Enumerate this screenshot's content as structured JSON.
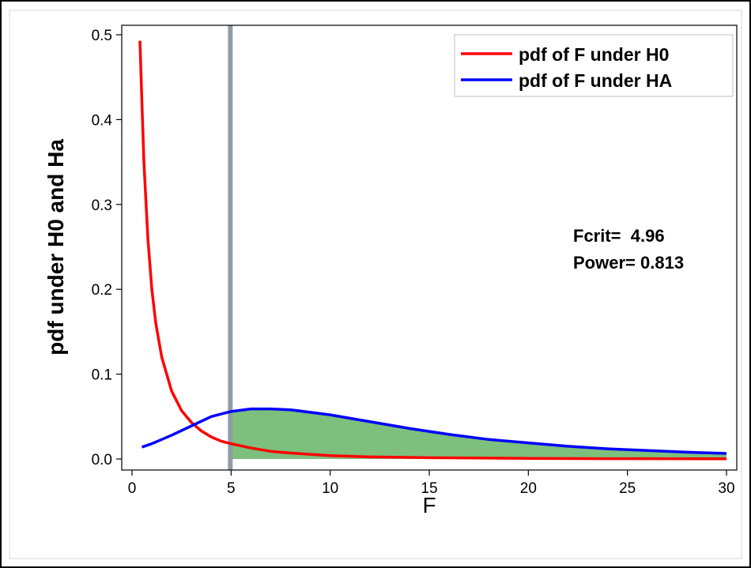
{
  "chart_data": {
    "type": "line",
    "title": "",
    "xlabel": "F",
    "ylabel": "pdf under H0 and Ha",
    "xlim": [
      0,
      30
    ],
    "ylim": [
      0,
      0.5
    ],
    "xticks": [
      0,
      5,
      10,
      15,
      20,
      25,
      30
    ],
    "yticks": [
      0.0,
      0.1,
      0.2,
      0.3,
      0.4,
      0.5
    ],
    "xtick_labels": [
      "0",
      "5",
      "10",
      "15",
      "20",
      "25",
      "30"
    ],
    "ytick_labels": [
      "0.0",
      "0.1",
      "0.2",
      "0.3",
      "0.4",
      "0.5"
    ],
    "grid": false,
    "legend_position": "top-right",
    "series": [
      {
        "name": "pdf of F under H0",
        "color": "#ff0000",
        "x": [
          0.4,
          0.5,
          0.6,
          0.8,
          1.0,
          1.2,
          1.5,
          2.0,
          2.5,
          3.0,
          3.5,
          4.0,
          4.5,
          5.0,
          6.0,
          7.0,
          8.0,
          10.0,
          12.0,
          15.0,
          20.0,
          25.0,
          30.0
        ],
        "values": [
          0.493,
          0.42,
          0.35,
          0.26,
          0.2,
          0.16,
          0.12,
          0.08,
          0.057,
          0.043,
          0.033,
          0.026,
          0.021,
          0.018,
          0.013,
          0.009,
          0.007,
          0.004,
          0.0025,
          0.0015,
          0.0007,
          0.0003,
          0.0002
        ]
      },
      {
        "name": "pdf of F under HA",
        "color": "#0000ff",
        "x": [
          0.5,
          1.0,
          1.5,
          2.0,
          3.0,
          4.0,
          5.0,
          6.0,
          7.0,
          8.0,
          10.0,
          12.0,
          14.0,
          16.0,
          18.0,
          20.0,
          22.0,
          24.0,
          26.0,
          28.0,
          30.0
        ],
        "values": [
          0.014,
          0.018,
          0.023,
          0.028,
          0.039,
          0.05,
          0.056,
          0.059,
          0.059,
          0.058,
          0.052,
          0.044,
          0.036,
          0.029,
          0.023,
          0.019,
          0.015,
          0.012,
          0.01,
          0.008,
          0.0065
        ]
      }
    ],
    "critical_value_line": {
      "x": 4.96,
      "color": "#939ba4"
    },
    "shaded_region": {
      "from_x": 4.96,
      "to_x": 30,
      "under_series": "pdf of F under HA",
      "color": "#7dbf7d"
    },
    "annotations": [
      {
        "label": "Fcrit=",
        "value": "4.96"
      },
      {
        "label": "Power=",
        "value": "0.813"
      }
    ]
  }
}
